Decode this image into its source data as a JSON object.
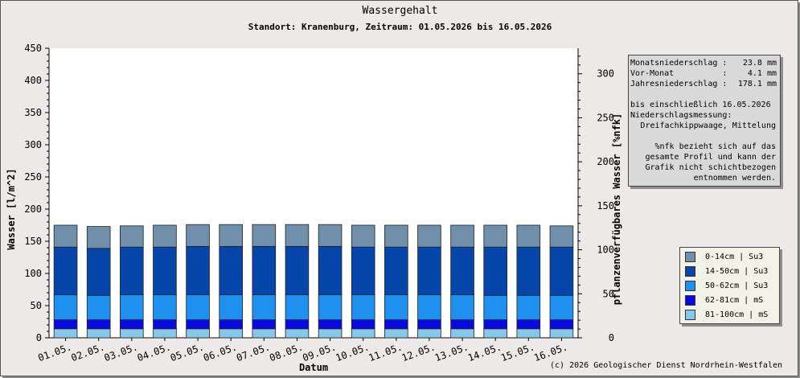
{
  "title": "Wassergehalt",
  "subtitle": "Standort: Kranenburg, Zeitraum: 01.05.2026 bis 16.05.2026",
  "copyright": "(c) 2026 Geologischer Dienst Nordrhein-Westfalen",
  "info": {
    "monat_label": "Monatsniederschlag :",
    "monat_value": "23.8 mm",
    "vormonat_label": "Vor-Monat          :",
    "vormonat_value": "4.1 mm",
    "jahr_label": "Jahresniederschlag :",
    "jahr_value": "178.1 mm",
    "bis_line": "bis einschließlich 16.05.2026",
    "messung_label": "Niederschlagsmessung:",
    "messung_value": "Dreifachkippwaage, Mittelung",
    "note_lines": [
      "%nfk bezieht sich auf das",
      "gesamte Profil und kann der",
      "Grafik nicht schichtbezogen",
      "entnommen werden."
    ]
  },
  "chart_data": {
    "type": "bar",
    "stacked": true,
    "title": "Wassergehalt",
    "subtitle": "Standort: Kranenburg, Zeitraum: 01.05.2026 bis 16.05.2026",
    "xlabel": "Datum",
    "ylabel": "Wasser [l/m^2]",
    "y2label": "pflanzenverfügbares Wasser [%nfk]",
    "ylim": [
      0,
      450
    ],
    "yticks": [
      0,
      50,
      100,
      150,
      200,
      250,
      300,
      350,
      400,
      450
    ],
    "y2lim": [
      0,
      329
    ],
    "y2ticks": [
      0,
      50,
      100,
      150,
      200,
      250,
      300
    ],
    "categories": [
      "01.05.",
      "02.05.",
      "03.05.",
      "04.05.",
      "05.05.",
      "06.05.",
      "07.05.",
      "08.05.",
      "09.05.",
      "10.05.",
      "11.05.",
      "12.05.",
      "13.05.",
      "14.05.",
      "15.05.",
      "16.05."
    ],
    "legend_position": "right",
    "series": [
      {
        "name": "81-100cm | mS",
        "color": "#87c8ea",
        "values": [
          14,
          14,
          14,
          14,
          14,
          14,
          14,
          14,
          14,
          14,
          14,
          14,
          14,
          14,
          14,
          14
        ]
      },
      {
        "name": "62-81cm | mS",
        "color": "#0a0ae0",
        "values": [
          14,
          14,
          14,
          14,
          14,
          14,
          14,
          14,
          14,
          14,
          14,
          14,
          14,
          14,
          14,
          14
        ]
      },
      {
        "name": "50-62cm | Su3",
        "color": "#1e90f0",
        "values": [
          39,
          38,
          39,
          39,
          39,
          39,
          39,
          39,
          39,
          39,
          39,
          39,
          39,
          38,
          38,
          38
        ]
      },
      {
        "name": "14-50cm | Su3",
        "color": "#0646aa",
        "values": [
          74,
          73,
          74,
          74,
          75,
          75,
          75,
          75,
          75,
          74,
          74,
          74,
          74,
          75,
          75,
          75
        ]
      },
      {
        "name": "0-14cm | Su3",
        "color": "#6f8faa",
        "values": [
          34,
          34,
          33,
          34,
          34,
          34,
          34,
          34,
          34,
          34,
          34,
          34,
          34,
          34,
          34,
          33
        ]
      }
    ],
    "legend_order": [
      "0-14cm | Su3",
      "14-50cm | Su3",
      "50-62cm | Su3",
      "62-81cm | mS",
      "81-100cm | mS"
    ]
  }
}
